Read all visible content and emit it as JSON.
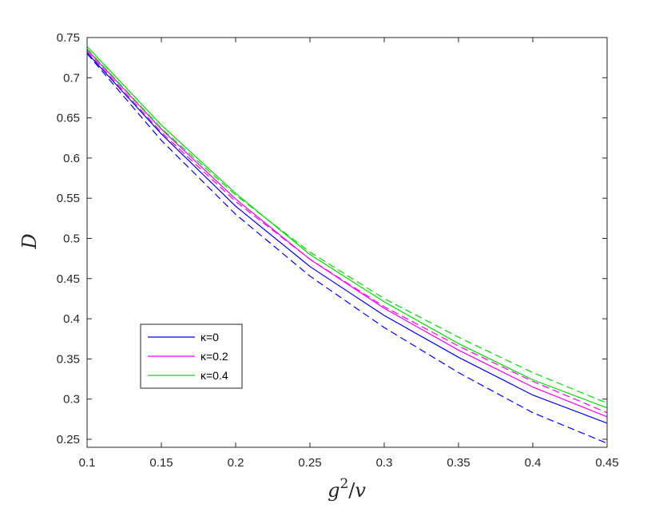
{
  "chart_data": {
    "type": "line",
    "xlabel": "g²/v",
    "ylabel": "D",
    "xlim": [
      0.1,
      0.45
    ],
    "ylim": [
      0.24,
      0.75
    ],
    "xticks": [
      0.1,
      0.15,
      0.2,
      0.25,
      0.3,
      0.35,
      0.4,
      0.45
    ],
    "xtick_labels": [
      "0.1",
      "0.15",
      "0.2",
      "0.25",
      "0.3",
      "0.35",
      "0.4",
      "0.45"
    ],
    "yticks": [
      0.25,
      0.3,
      0.35,
      0.4,
      0.45,
      0.5,
      0.55,
      0.6,
      0.65,
      0.7,
      0.75
    ],
    "ytick_labels": [
      "0.25",
      "0.3",
      "0.35",
      "0.4",
      "0.45",
      "0.5",
      "0.55",
      "0.6",
      "0.65",
      "0.7",
      "0.75"
    ],
    "grid": false,
    "legend_position": "lower-left",
    "x": [
      0.1,
      0.15,
      0.2,
      0.25,
      0.3,
      0.35,
      0.4,
      0.45
    ],
    "series": [
      {
        "name": "κ=0",
        "color": "#0000ff",
        "style": "solid",
        "values": [
          0.731,
          0.63,
          0.54,
          0.465,
          0.404,
          0.352,
          0.305,
          0.27
        ]
      },
      {
        "color": "#0000ff",
        "style": "dashed",
        "values": [
          0.73,
          0.622,
          0.53,
          0.453,
          0.389,
          0.333,
          0.283,
          0.245
        ]
      },
      {
        "name": "κ=0.2",
        "color": "#ff00ff",
        "style": "solid",
        "values": [
          0.735,
          0.636,
          0.549,
          0.474,
          0.413,
          0.361,
          0.315,
          0.278
        ]
      },
      {
        "color": "#ff00ff",
        "style": "dashed",
        "values": [
          0.733,
          0.632,
          0.546,
          0.474,
          0.415,
          0.366,
          0.322,
          0.283
        ]
      },
      {
        "name": "κ=0.4",
        "color": "#00dd00",
        "style": "solid",
        "values": [
          0.739,
          0.641,
          0.556,
          0.48,
          0.421,
          0.369,
          0.324,
          0.289
        ]
      },
      {
        "color": "#00dd00",
        "style": "dashed",
        "values": [
          0.736,
          0.637,
          0.554,
          0.483,
          0.425,
          0.377,
          0.333,
          0.295
        ]
      }
    ],
    "legend": [
      {
        "label": "κ=0",
        "color": "#0000ff"
      },
      {
        "label": "κ=0.2",
        "color": "#ff00ff"
      },
      {
        "label": "κ=0.4",
        "color": "#00dd00"
      }
    ]
  }
}
